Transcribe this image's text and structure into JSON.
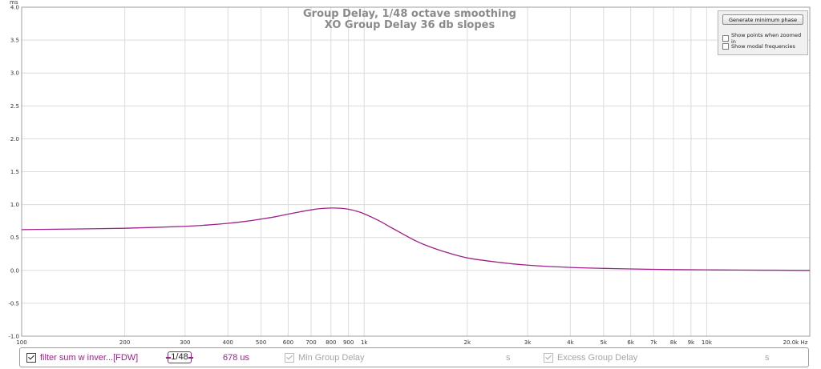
{
  "chart_data": {
    "type": "line",
    "title": "Group Delay, 1/48 octave smoothing",
    "subtitle": "XO Group Delay 36 db slopes",
    "y_unit": "ms",
    "x_unit": "Hz",
    "xscale": "log",
    "xlim": [
      100,
      20000
    ],
    "ylim": [
      -1.0,
      4.0
    ],
    "grid": true,
    "x_ticks": [
      {
        "v": 100,
        "label": "100"
      },
      {
        "v": 200,
        "label": "200"
      },
      {
        "v": 300,
        "label": "300"
      },
      {
        "v": 400,
        "label": "400"
      },
      {
        "v": 500,
        "label": "500"
      },
      {
        "v": 600,
        "label": "600"
      },
      {
        "v": 700,
        "label": "700"
      },
      {
        "v": 800,
        "label": "800"
      },
      {
        "v": 900,
        "label": "900"
      },
      {
        "v": 1000,
        "label": "1k"
      },
      {
        "v": 2000,
        "label": "2k"
      },
      {
        "v": 3000,
        "label": "3k"
      },
      {
        "v": 4000,
        "label": "4k"
      },
      {
        "v": 5000,
        "label": "5k"
      },
      {
        "v": 6000,
        "label": "6k"
      },
      {
        "v": 7000,
        "label": "7k"
      },
      {
        "v": 8000,
        "label": "8k"
      },
      {
        "v": 9000,
        "label": "9k"
      },
      {
        "v": 10000,
        "label": "10k"
      },
      {
        "v": 20000,
        "label": "20.0k Hz"
      }
    ],
    "y_ticks": [
      {
        "v": 4.0,
        "label": "4.0"
      },
      {
        "v": 3.5,
        "label": "3.5"
      },
      {
        "v": 3.0,
        "label": "3.0"
      },
      {
        "v": 2.5,
        "label": "2.5"
      },
      {
        "v": 2.0,
        "label": "2.0"
      },
      {
        "v": 1.5,
        "label": "1.5"
      },
      {
        "v": 1.0,
        "label": "1.0"
      },
      {
        "v": 0.5,
        "label": "0.5"
      },
      {
        "v": 0.0,
        "label": "0.0"
      },
      {
        "v": -0.5,
        "label": "-0.5"
      },
      {
        "v": -1.0,
        "label": "-1.0"
      }
    ],
    "series": [
      {
        "name": "filter sum w inver...[FDW]",
        "color": "#a0208a",
        "x": [
          100,
          150,
          200,
          250,
          300,
          350,
          400,
          450,
          500,
          550,
          600,
          650,
          700,
          750,
          800,
          850,
          900,
          950,
          1000,
          1100,
          1200,
          1300,
          1400,
          1500,
          1700,
          2000,
          2500,
          3000,
          4000,
          5000,
          6000,
          7000,
          8000,
          10000,
          15000,
          20000
        ],
        "y": [
          0.62,
          0.63,
          0.64,
          0.655,
          0.67,
          0.69,
          0.715,
          0.745,
          0.78,
          0.815,
          0.855,
          0.89,
          0.92,
          0.94,
          0.948,
          0.945,
          0.93,
          0.9,
          0.86,
          0.76,
          0.65,
          0.55,
          0.46,
          0.39,
          0.29,
          0.19,
          0.12,
          0.08,
          0.045,
          0.03,
          0.022,
          0.016,
          0.012,
          0.008,
          0.003,
          0.0
        ]
      }
    ]
  },
  "panel": {
    "generate_button": "Generate minimum phase",
    "option_zoom": "Show points when zoomed in",
    "option_modal": "Show modal frequencies"
  },
  "legend": {
    "trace_name": "filter sum w inver...[FDW]",
    "smoothing": "1/48",
    "delay_value": "678 us",
    "min_gd_label": "Min Group Delay",
    "min_gd_unit": "s",
    "excess_gd_label": "Excess Group Delay",
    "excess_gd_unit": "s"
  }
}
